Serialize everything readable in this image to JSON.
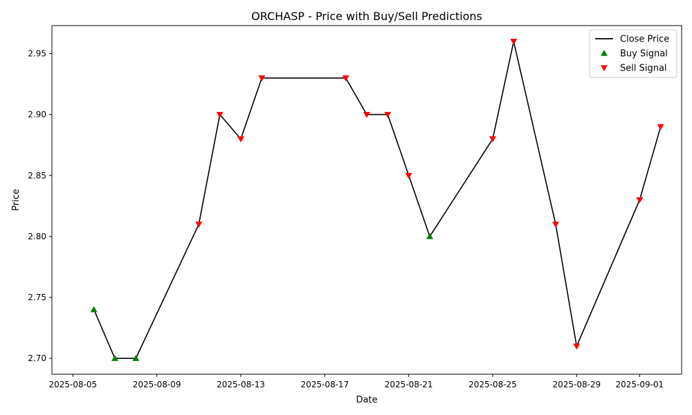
{
  "chart_data": {
    "type": "line",
    "title": "ORCHASP - Price with Buy/Sell Predictions",
    "xlabel": "Date",
    "ylabel": "Price",
    "xlim": [
      "2025-08-04",
      "2025-09-03"
    ],
    "ylim": [
      2.687,
      2.973
    ],
    "x_ticks": [
      "2025-08-05",
      "2025-08-09",
      "2025-08-13",
      "2025-08-17",
      "2025-08-21",
      "2025-08-25",
      "2025-08-29",
      "2025-09-01"
    ],
    "y_ticks": [
      "2.70",
      "2.75",
      "2.80",
      "2.85",
      "2.90",
      "2.95"
    ],
    "grid": false,
    "legend_position": "top-right",
    "series": [
      {
        "name": "Close Price",
        "kind": "line",
        "color": "#000000",
        "points": [
          {
            "date": "2025-08-06",
            "price": 2.74
          },
          {
            "date": "2025-08-07",
            "price": 2.7
          },
          {
            "date": "2025-08-08",
            "price": 2.7
          },
          {
            "date": "2025-08-11",
            "price": 2.81
          },
          {
            "date": "2025-08-12",
            "price": 2.9
          },
          {
            "date": "2025-08-13",
            "price": 2.88
          },
          {
            "date": "2025-08-14",
            "price": 2.93
          },
          {
            "date": "2025-08-18",
            "price": 2.93
          },
          {
            "date": "2025-08-19",
            "price": 2.9
          },
          {
            "date": "2025-08-20",
            "price": 2.9
          },
          {
            "date": "2025-08-21",
            "price": 2.85
          },
          {
            "date": "2025-08-22",
            "price": 2.8
          },
          {
            "date": "2025-08-25",
            "price": 2.88
          },
          {
            "date": "2025-08-26",
            "price": 2.96
          },
          {
            "date": "2025-08-28",
            "price": 2.81
          },
          {
            "date": "2025-08-29",
            "price": 2.71
          },
          {
            "date": "2025-09-01",
            "price": 2.83
          },
          {
            "date": "2025-09-02",
            "price": 2.89
          }
        ]
      },
      {
        "name": "Buy Signal",
        "kind": "marker-up",
        "color": "#008000",
        "points": [
          {
            "date": "2025-08-06",
            "price": 2.74
          },
          {
            "date": "2025-08-07",
            "price": 2.7
          },
          {
            "date": "2025-08-08",
            "price": 2.7
          },
          {
            "date": "2025-08-22",
            "price": 2.8
          }
        ]
      },
      {
        "name": "Sell Signal",
        "kind": "marker-down",
        "color": "#ff0000",
        "points": [
          {
            "date": "2025-08-11",
            "price": 2.81
          },
          {
            "date": "2025-08-12",
            "price": 2.9
          },
          {
            "date": "2025-08-13",
            "price": 2.88
          },
          {
            "date": "2025-08-14",
            "price": 2.93
          },
          {
            "date": "2025-08-18",
            "price": 2.93
          },
          {
            "date": "2025-08-19",
            "price": 2.9
          },
          {
            "date": "2025-08-20",
            "price": 2.9
          },
          {
            "date": "2025-08-21",
            "price": 2.85
          },
          {
            "date": "2025-08-25",
            "price": 2.88
          },
          {
            "date": "2025-08-26",
            "price": 2.96
          },
          {
            "date": "2025-08-28",
            "price": 2.81
          },
          {
            "date": "2025-08-29",
            "price": 2.71
          },
          {
            "date": "2025-09-01",
            "price": 2.83
          },
          {
            "date": "2025-09-02",
            "price": 2.89
          }
        ]
      }
    ]
  }
}
